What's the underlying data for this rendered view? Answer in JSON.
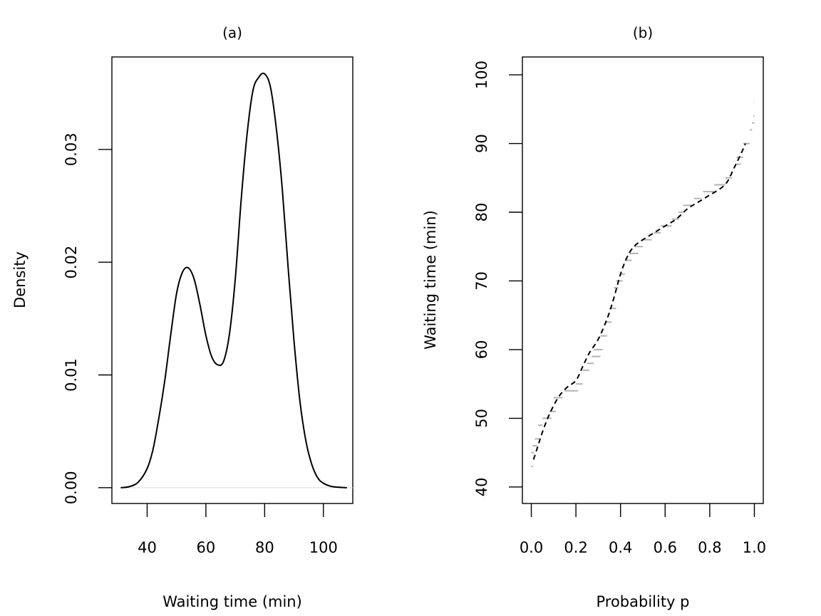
{
  "colors": {
    "line": "#000000",
    "step": "#b3b3b3",
    "baseline": "#d9d9d9",
    "box": "#000000"
  },
  "chart_data": [
    {
      "type": "line",
      "title": "(a)",
      "xlabel": "Waiting time (min)",
      "ylabel": "Density",
      "xlim": [
        28,
        110
      ],
      "ylim": [
        -0.0014,
        0.0382
      ],
      "xticks": [
        40,
        60,
        80,
        100
      ],
      "xtick_labels": [
        "40",
        "60",
        "80",
        "100"
      ],
      "yticks": [
        0.0,
        0.01,
        0.02,
        0.03
      ],
      "ytick_labels": [
        "0.00",
        "0.01",
        "0.02",
        "0.03"
      ],
      "baseline": 0,
      "series": [
        {
          "x": [
            31,
            34,
            37,
            40,
            42,
            44,
            46,
            48,
            50,
            52,
            54,
            56,
            58,
            60,
            62,
            64,
            66,
            68,
            70,
            72,
            74,
            76,
            78,
            80,
            82,
            84,
            86,
            88,
            90,
            92,
            94,
            96,
            98,
            100,
            103,
            108
          ],
          "y": [
            0.0,
            0.0001,
            0.0005,
            0.0017,
            0.0034,
            0.0062,
            0.0095,
            0.0135,
            0.0172,
            0.0191,
            0.0195,
            0.0185,
            0.0162,
            0.0135,
            0.0116,
            0.0109,
            0.0112,
            0.0136,
            0.0185,
            0.0255,
            0.0313,
            0.0352,
            0.0364,
            0.0367,
            0.0355,
            0.0318,
            0.0265,
            0.0195,
            0.013,
            0.0077,
            0.0042,
            0.0021,
            0.0009,
            0.0004,
            0.0001,
            0.0
          ]
        }
      ]
    },
    {
      "type": "line",
      "title": "(b)",
      "xlabel": "Probability p",
      "ylabel": "Waiting time (min)",
      "xlim": [
        -0.04,
        1.04
      ],
      "ylim": [
        37.6,
        102.6
      ],
      "xticks": [
        0.0,
        0.2,
        0.4,
        0.6,
        0.8,
        1.0
      ],
      "xtick_labels": [
        "0.0",
        "0.2",
        "0.4",
        "0.6",
        "0.8",
        "1.0"
      ],
      "yticks": [
        40,
        50,
        60,
        70,
        80,
        90,
        100
      ],
      "ytick_labels": [
        "40",
        "50",
        "60",
        "70",
        "80",
        "90",
        "100"
      ],
      "series": [
        {
          "style": "dashed",
          "x": [
            0.01,
            0.03,
            0.05,
            0.08,
            0.12,
            0.16,
            0.2,
            0.23,
            0.26,
            0.3,
            0.34,
            0.37,
            0.4,
            0.43,
            0.46,
            0.5,
            0.55,
            0.6,
            0.65,
            0.7,
            0.75,
            0.8,
            0.85,
            0.88,
            0.91,
            0.94,
            0.96
          ],
          "y": [
            44,
            46,
            48,
            50.5,
            53,
            54.5,
            55.5,
            57.5,
            59.5,
            61.5,
            64.5,
            67.5,
            71,
            73.5,
            75,
            76,
            77,
            78,
            79,
            80.5,
            81.5,
            82.5,
            83.5,
            84.5,
            86.5,
            88.5,
            90
          ]
        },
        {
          "style": "step",
          "steps": [
            [
              0.0,
              0.008,
              43
            ],
            [
              0.0,
              0.012,
              45
            ],
            [
              0.005,
              0.025,
              46
            ],
            [
              0.015,
              0.035,
              47
            ],
            [
              0.03,
              0.05,
              49
            ],
            [
              0.05,
              0.09,
              50
            ],
            [
              0.08,
              0.11,
              51
            ],
            [
              0.1,
              0.14,
              53
            ],
            [
              0.15,
              0.21,
              54
            ],
            [
              0.2,
              0.23,
              55
            ],
            [
              0.23,
              0.26,
              57
            ],
            [
              0.25,
              0.28,
              58
            ],
            [
              0.27,
              0.31,
              59
            ],
            [
              0.28,
              0.32,
              60
            ],
            [
              0.31,
              0.34,
              62
            ],
            [
              0.33,
              0.36,
              64
            ],
            [
              0.35,
              0.38,
              66
            ],
            [
              0.37,
              0.39,
              69
            ],
            [
              0.38,
              0.41,
              70
            ],
            [
              0.4,
              0.42,
              71
            ],
            [
              0.42,
              0.45,
              73
            ],
            [
              0.44,
              0.48,
              74
            ],
            [
              0.46,
              0.5,
              75
            ],
            [
              0.5,
              0.54,
              76
            ],
            [
              0.55,
              0.58,
              77
            ],
            [
              0.58,
              0.63,
              78
            ],
            [
              0.63,
              0.66,
              79
            ],
            [
              0.66,
              0.68,
              80
            ],
            [
              0.68,
              0.72,
              81
            ],
            [
              0.73,
              0.76,
              82
            ],
            [
              0.77,
              0.82,
              83
            ],
            [
              0.82,
              0.87,
              84
            ],
            [
              0.87,
              0.9,
              85
            ],
            [
              0.92,
              0.94,
              87
            ],
            [
              0.92,
              0.95,
              88
            ],
            [
              0.95,
              0.98,
              90
            ],
            [
              0.98,
              0.99,
              92
            ],
            [
              0.99,
              1.0,
              93
            ],
            [
              0.995,
              1.0,
              94
            ],
            [
              0.998,
              1.0,
              96
            ]
          ]
        }
      ]
    }
  ]
}
